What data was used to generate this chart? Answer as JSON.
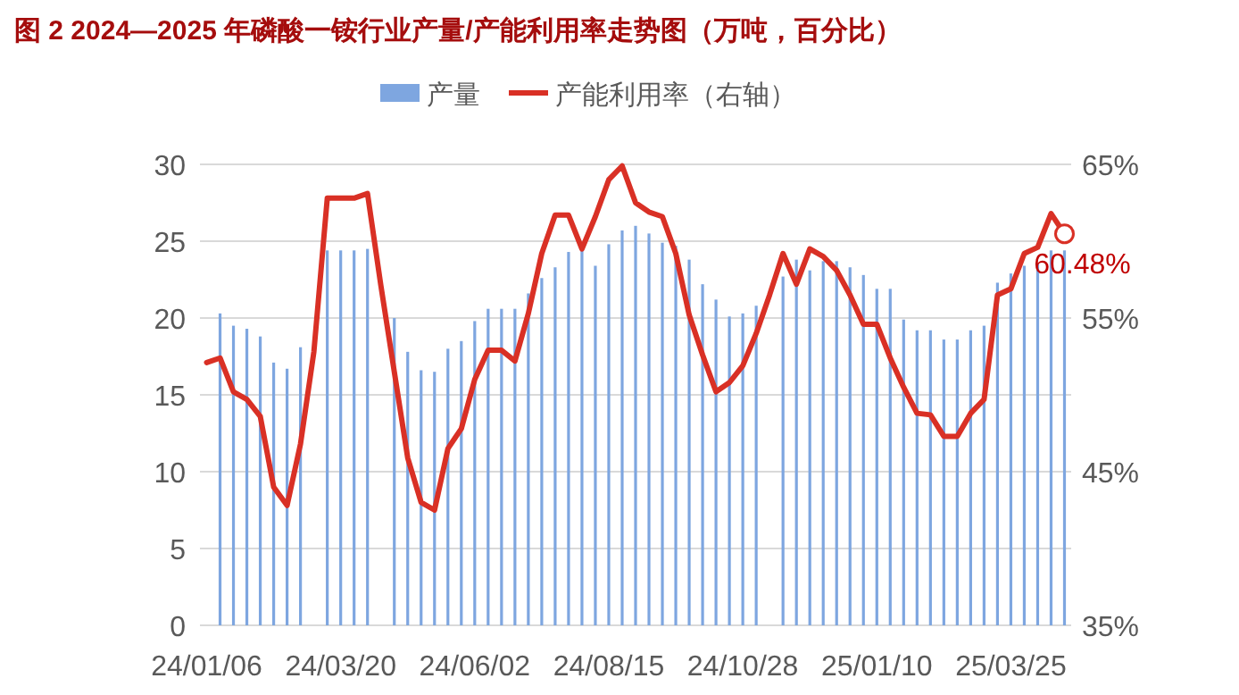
{
  "chart_data": {
    "type": "bar",
    "title": "图 2 2024—2025 年磷酸一铵行业产量/产能利用率走势图（万吨，百分比）",
    "categories": [
      "24/01/06",
      null,
      null,
      null,
      null,
      null,
      null,
      null,
      null,
      null,
      "24/03/20",
      null,
      null,
      null,
      null,
      null,
      null,
      null,
      null,
      null,
      "24/06/02",
      null,
      null,
      null,
      null,
      null,
      null,
      null,
      null,
      null,
      "24/08/15",
      null,
      null,
      null,
      null,
      null,
      null,
      null,
      null,
      null,
      "24/10/28",
      null,
      null,
      null,
      null,
      null,
      null,
      null,
      null,
      null,
      "25/01/10",
      null,
      null,
      null,
      null,
      null,
      null,
      null,
      null,
      null,
      "25/03/25",
      null,
      null,
      null,
      null
    ],
    "series": [
      {
        "name": "产量",
        "color": "#7ea6e0",
        "values": [
          null,
          20.3,
          19.5,
          19.3,
          18.8,
          17.1,
          16.7,
          18.1,
          null,
          24.4,
          24.4,
          24.4,
          24.5,
          null,
          20.0,
          17.8,
          16.6,
          16.5,
          18.0,
          18.5,
          19.8,
          20.6,
          20.6,
          20.6,
          21.6,
          22.6,
          23.3,
          24.3,
          24.5,
          23.4,
          24.8,
          25.7,
          26.0,
          25.5,
          24.9,
          24.7,
          23.8,
          22.2,
          21.2,
          20.1,
          20.3,
          20.8,
          null,
          22.7,
          23.8,
          23.1,
          23.7,
          23.7,
          23.3,
          22.8,
          21.9,
          21.9,
          19.9,
          19.2,
          19.2,
          18.6,
          18.6,
          19.2,
          19.5,
          22.3,
          22.9,
          23.4,
          23.5,
          24.4,
          24.4
        ]
      },
      {
        "name": "产能利用率（右轴）",
        "type": "line",
        "axis": "y2",
        "color": "#d93025",
        "values": [
          52.1,
          52.4,
          50.2,
          49.7,
          48.6,
          44.0,
          42.8,
          46.8,
          52.8,
          62.8,
          62.8,
          62.8,
          63.1,
          57.1,
          51.5,
          45.9,
          43.0,
          42.5,
          46.5,
          47.8,
          51.0,
          52.9,
          52.9,
          52.2,
          55.3,
          59.2,
          61.7,
          61.7,
          59.5,
          61.6,
          64.0,
          64.9,
          62.5,
          61.9,
          61.6,
          59.2,
          55.2,
          52.6,
          50.2,
          50.8,
          51.9,
          54.0,
          56.5,
          59.2,
          57.2,
          59.5,
          59.0,
          58.1,
          56.5,
          54.6,
          54.6,
          52.4,
          50.5,
          48.8,
          48.7,
          47.3,
          47.3,
          48.8,
          49.7,
          56.5,
          56.9,
          59.2,
          59.6,
          61.8,
          60.48
        ],
        "value_labels": [
          null,
          null,
          null,
          null,
          null,
          null,
          null,
          null,
          null,
          null,
          null,
          null,
          null,
          null,
          null,
          null,
          null,
          null,
          null,
          null,
          null,
          null,
          null,
          null,
          null,
          null,
          null,
          null,
          null,
          null,
          null,
          null,
          null,
          null,
          null,
          null,
          null,
          null,
          null,
          null,
          null,
          null,
          null,
          null,
          null,
          null,
          null,
          null,
          null,
          null,
          null,
          null,
          null,
          null,
          null,
          null,
          null,
          null,
          null,
          null,
          null,
          null,
          null,
          null,
          "60.48%"
        ]
      }
    ],
    "ylim": [
      0,
      30
    ],
    "yticks": [
      0,
      5,
      10,
      15,
      20,
      25,
      30
    ],
    "y2lim": [
      35,
      65
    ],
    "y2ticks": [
      {
        "value": 35,
        "label": "35%"
      },
      {
        "value": 45,
        "label": "45%"
      },
      {
        "value": 55,
        "label": "55%"
      },
      {
        "value": 65,
        "label": "65%"
      }
    ],
    "grid": "y",
    "legend": "top"
  }
}
